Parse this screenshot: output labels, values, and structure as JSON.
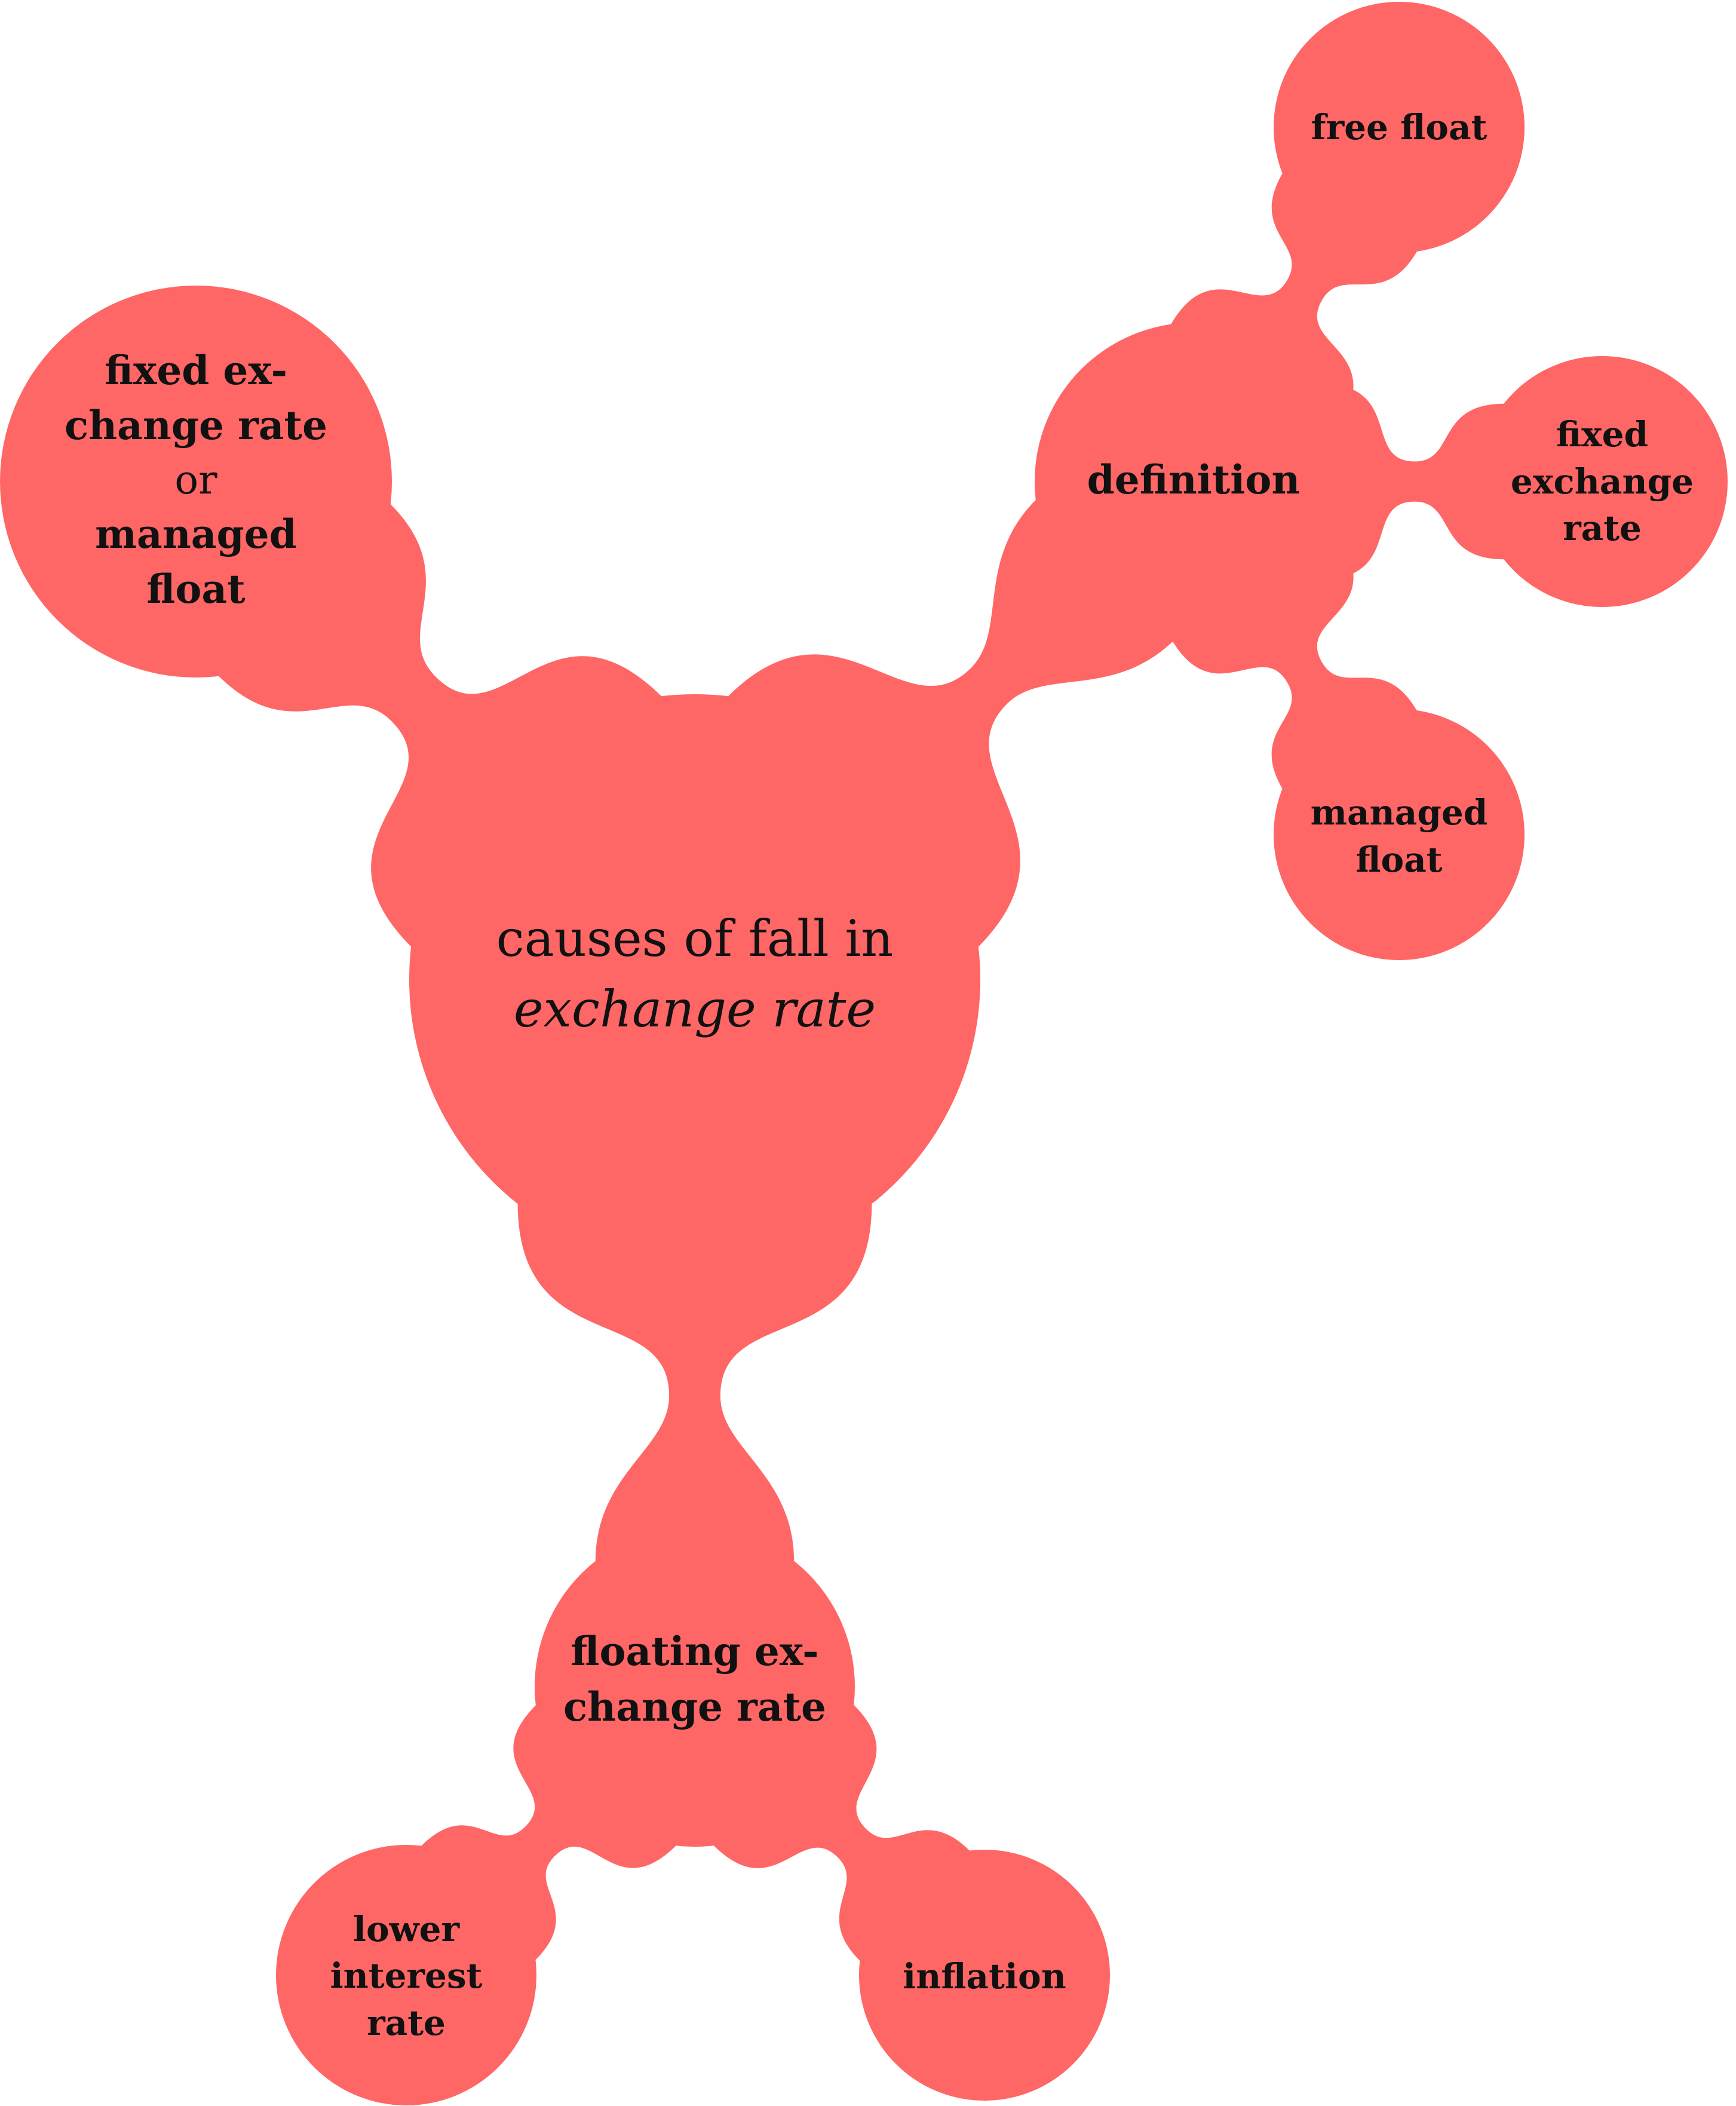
{
  "colors": {
    "node_fill": "#FF6666",
    "text": "#111111",
    "background": "#FFFFFF"
  },
  "center": {
    "line1": "causes of fall in",
    "line2": "exchange rate"
  },
  "fixed_node": {
    "line1": "fixed ex-",
    "line2": "change rate",
    "line3": "or",
    "line4": "managed",
    "line5": "float"
  },
  "definition_node": {
    "label": "definition",
    "free_float": "free float",
    "fixed_exchange_rate": {
      "line1": "fixed",
      "line2": "exchange",
      "line3": "rate"
    },
    "managed_float": {
      "line1": "managed",
      "line2": "float"
    }
  },
  "floating_node": {
    "line1": "floating ex-",
    "line2": "change rate",
    "lower_interest_rate": {
      "line1": "lower",
      "line2": "interest",
      "line3": "rate"
    },
    "inflation": "inflation"
  }
}
